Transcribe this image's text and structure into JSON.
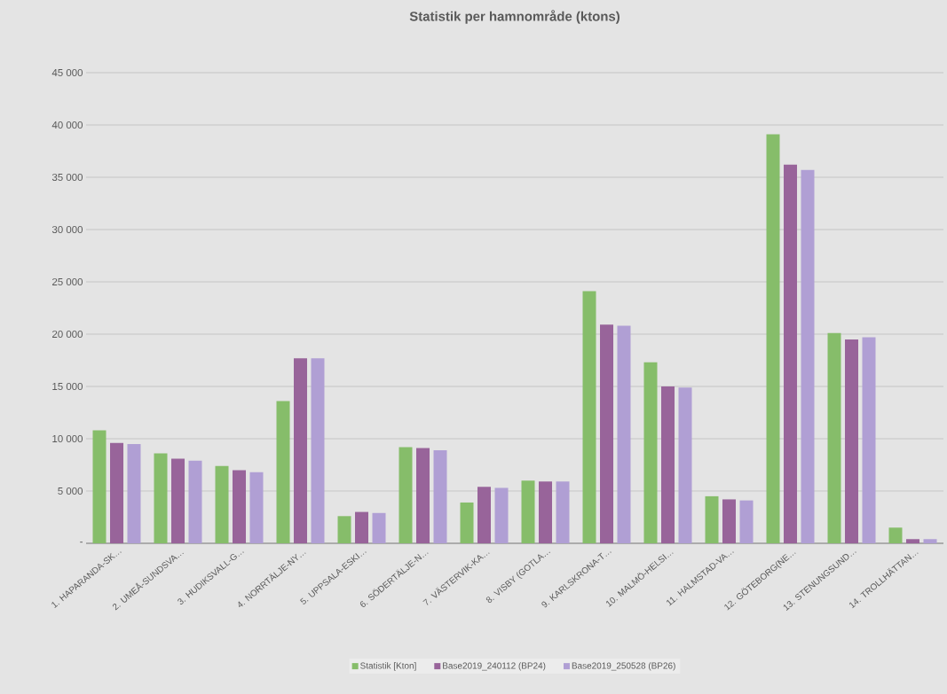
{
  "chart_data": {
    "type": "bar",
    "title": "Statistik per hamnområde (ktons)",
    "categories": [
      "1. HAPARANDA-SK…",
      "2. UMEÅ-SUNDSVA…",
      "3. HUDIKSVALL-G…",
      "4. NORRTÄLJE-NY…",
      "5. UPPSALA-ESKI…",
      "6. SÖDERTÄLJE-N…",
      "7. VÄSTERVIK-KA…",
      "8. VISBY (GOTLA…",
      "9. KARLSKRONA-T…",
      "10. MALMÖ-HELSI…",
      "11. HALMSTAD-VA…",
      "12. GÖTEBORG(NE…",
      "13. STENUNGSUND…",
      "14. TROLLHÄTTAN…"
    ],
    "series": [
      {
        "name": "Statistik [Kton]",
        "color": "#86bd6a",
        "values": [
          10800,
          8600,
          7400,
          13600,
          2600,
          9200,
          3900,
          6000,
          24100,
          17300,
          4500,
          39100,
          20100,
          1500
        ]
      },
      {
        "name": "Base2019_240112 (BP24)",
        "color": "#98649a",
        "values": [
          9600,
          8100,
          7000,
          17700,
          3000,
          9100,
          5400,
          5900,
          20900,
          15000,
          4200,
          36200,
          19500,
          400
        ]
      },
      {
        "name": "Base2019_250528 (BP26)",
        "color": "#b09fd4",
        "values": [
          9500,
          7900,
          6800,
          17700,
          2900,
          8900,
          5300,
          5900,
          20800,
          14900,
          4100,
          35700,
          19700,
          400
        ]
      }
    ],
    "ylim": [
      0,
      45000
    ],
    "yticks": [
      {
        "value": 0,
        "label": "-"
      },
      {
        "value": 5000,
        "label": "5 000"
      },
      {
        "value": 10000,
        "label": "10 000"
      },
      {
        "value": 15000,
        "label": "15 000"
      },
      {
        "value": 20000,
        "label": "20 000"
      },
      {
        "value": 25000,
        "label": "25 000"
      },
      {
        "value": 30000,
        "label": "30 000"
      },
      {
        "value": 35000,
        "label": "35 000"
      },
      {
        "value": 40000,
        "label": "40 000"
      },
      {
        "value": 45000,
        "label": "45 000"
      }
    ],
    "grid": "y",
    "legend": "bottom"
  }
}
